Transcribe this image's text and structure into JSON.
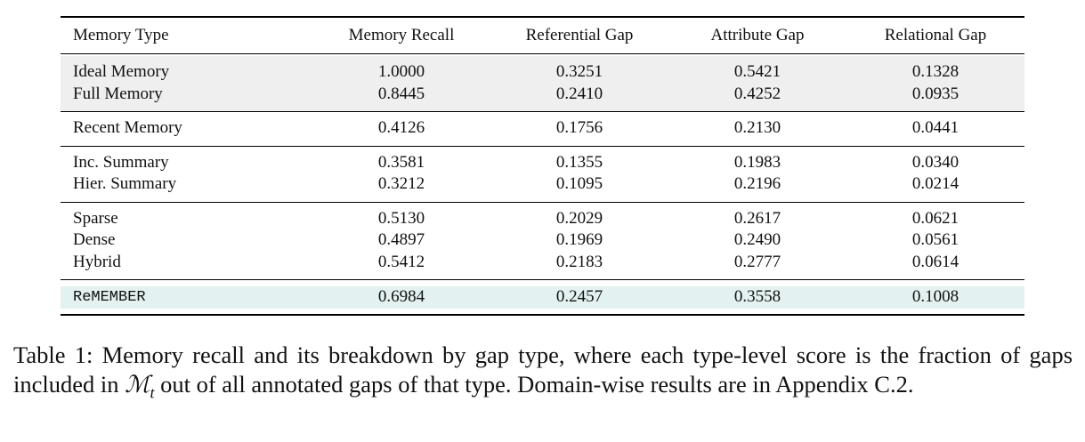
{
  "table": {
    "header": [
      "Memory Type",
      "Memory Recall",
      "Referential Gap",
      "Attribute Gap",
      "Relational Gap"
    ],
    "groups": [
      {
        "rows": [
          [
            "Ideal Memory",
            "1.0000",
            "0.3251",
            "0.5421",
            "0.1328"
          ],
          [
            "Full Memory",
            "0.8445",
            "0.2410",
            "0.4252",
            "0.0935"
          ]
        ]
      },
      {
        "rows": [
          [
            "Recent Memory",
            "0.4126",
            "0.1756",
            "0.2130",
            "0.0441"
          ]
        ]
      },
      {
        "rows": [
          [
            "Inc. Summary",
            "0.3581",
            "0.1355",
            "0.1983",
            "0.0340"
          ],
          [
            "Hier. Summary",
            "0.3212",
            "0.1095",
            "0.2196",
            "0.0214"
          ]
        ]
      },
      {
        "rows": [
          [
            "Sparse",
            "0.5130",
            "0.2029",
            "0.2617",
            "0.0621"
          ],
          [
            "Dense",
            "0.4897",
            "0.1969",
            "0.2490",
            "0.0561"
          ],
          [
            "Hybrid",
            "0.5412",
            "0.2183",
            "0.2777",
            "0.0614"
          ]
        ]
      },
      {
        "rows": [
          [
            "ReMEMBER",
            "0.6984",
            "0.2457",
            "0.3558",
            "0.1008"
          ]
        ]
      }
    ]
  },
  "caption": {
    "label": "Table 1:",
    "before": "Memory recall and its breakdown by gap type, where each type-level score is the fraction of gaps included in",
    "symbol": "ℳ",
    "subscript": "t",
    "after": "out of all annotated gaps of that type. Domain-wise results are in Appendix C.2."
  }
}
